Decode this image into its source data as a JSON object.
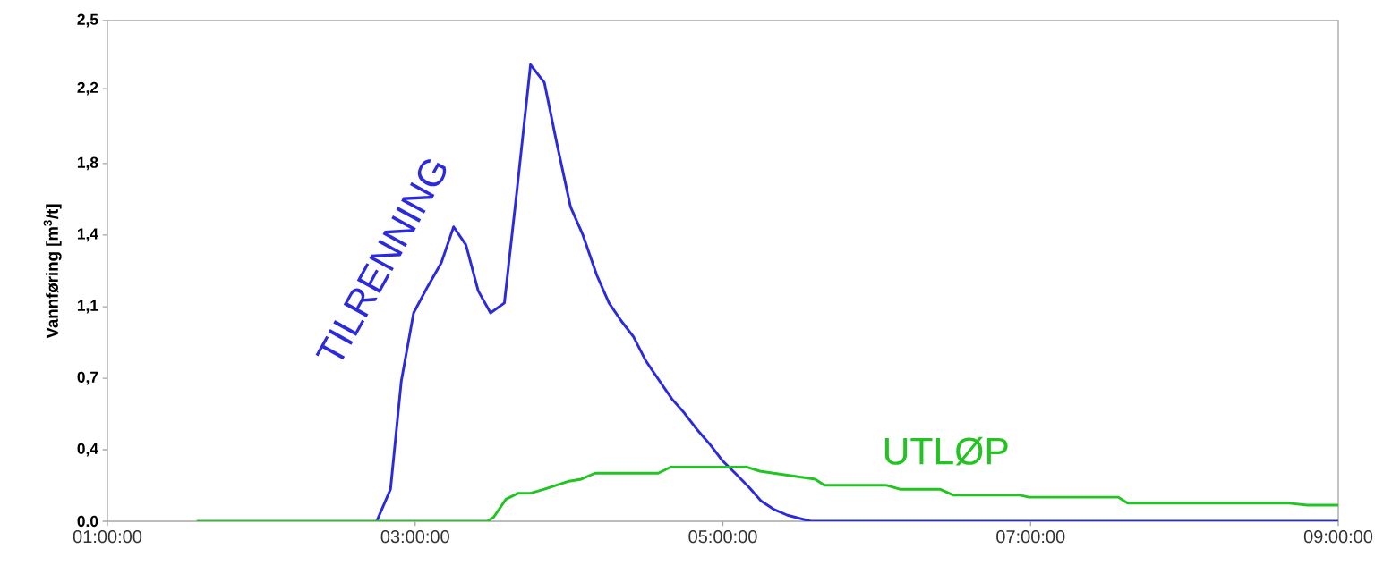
{
  "chart_data": {
    "type": "line",
    "ylabel": "Vannføring [m$^{3}$/t]",
    "xlim": [
      1,
      9
    ],
    "ylim": [
      0,
      2.5
    ],
    "xticks": [
      {
        "value": 1,
        "label": "01:00:00"
      },
      {
        "value": 3,
        "label": "03:00:00"
      },
      {
        "value": 5,
        "label": "05:00:00"
      },
      {
        "value": 7,
        "label": "07:00:00"
      },
      {
        "value": 9,
        "label": "09:00:00"
      }
    ],
    "yticks": [
      {
        "value": 0,
        "label": "0.0"
      },
      {
        "value": 0.357,
        "label": "0,4"
      },
      {
        "value": 0.714,
        "label": "0,7"
      },
      {
        "value": 1.071,
        "label": "1,1"
      },
      {
        "value": 1.429,
        "label": "1,4"
      },
      {
        "value": 1.786,
        "label": "1,8"
      },
      {
        "value": 2.16,
        "label": "2,2"
      },
      {
        "value": 2.5,
        "label": "2,5"
      }
    ],
    "grid": false,
    "legend": false,
    "marker": "none",
    "line_style": "solid",
    "series": [
      {
        "name": "TILRENNING",
        "color": "#2b2bdc",
        "x": [
          2.75,
          2.84,
          2.91,
          2.99,
          3.08,
          3.17,
          3.25,
          3.33,
          3.41,
          3.49,
          3.58,
          3.66,
          3.75,
          3.84,
          3.92,
          4.01,
          4.09,
          4.18,
          4.26,
          4.34,
          4.42,
          4.5,
          4.58,
          4.67,
          4.75,
          4.83,
          4.92,
          5.0,
          5.08,
          5.17,
          5.25,
          5.33,
          5.42,
          5.57,
          5.65,
          9.0
        ],
        "values": [
          0,
          0.16,
          0.7,
          1.04,
          1.17,
          1.29,
          1.47,
          1.38,
          1.15,
          1.04,
          1.09,
          1.64,
          2.28,
          2.19,
          1.89,
          1.57,
          1.43,
          1.23,
          1.09,
          1.0,
          0.92,
          0.8,
          0.71,
          0.61,
          0.54,
          0.46,
          0.38,
          0.3,
          0.24,
          0.17,
          0.1,
          0.06,
          0.03,
          0.0,
          0,
          0
        ]
      },
      {
        "name": "UTLØP",
        "color": "#22c422",
        "x": [
          1.58,
          3.47,
          3.51,
          3.59,
          3.67,
          3.75,
          3.84,
          3.92,
          4.0,
          4.08,
          4.17,
          4.26,
          4.58,
          4.66,
          5.16,
          5.24,
          5.42,
          5.6,
          5.66,
          6.06,
          6.15,
          6.41,
          6.5,
          6.93,
          6.99,
          7.57,
          7.63,
          8.68,
          8.8,
          9.0
        ],
        "values": [
          0,
          0,
          0.02,
          0.11,
          0.14,
          0.14,
          0.16,
          0.18,
          0.2,
          0.21,
          0.24,
          0.24,
          0.24,
          0.27,
          0.27,
          0.25,
          0.23,
          0.21,
          0.18,
          0.18,
          0.16,
          0.16,
          0.13,
          0.13,
          0.12,
          0.12,
          0.09,
          0.09,
          0.08,
          0.08
        ]
      }
    ]
  }
}
